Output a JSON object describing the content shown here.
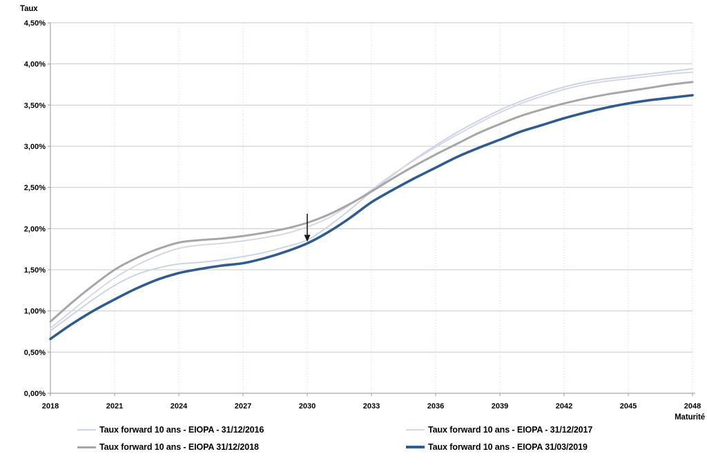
{
  "chart_data": {
    "type": "line",
    "title": "",
    "ylabel": "Taux",
    "xlabel": "Maturité",
    "x_start": 2018,
    "x_end": 2048,
    "x_ticks": [
      "2018",
      "2021",
      "2024",
      "2027",
      "2030",
      "2033",
      "2036",
      "2039",
      "2042",
      "2045",
      "2048"
    ],
    "ylim": [
      0,
      4.5
    ],
    "y_ticks": {
      "values": [
        0,
        0.5,
        1.0,
        1.5,
        2.0,
        2.5,
        3.0,
        3.5,
        4.0,
        4.5
      ],
      "labels": [
        "0,00%",
        "0,50%",
        "1,00%",
        "1,50%",
        "2,00%",
        "2,50%",
        "3,00%",
        "3,50%",
        "4,00%",
        "4,50%"
      ]
    },
    "grid": {
      "horizontal": "solid",
      "vertical": "dotted"
    },
    "legend_position": "bottom-two-columns",
    "x": [
      2018,
      2019,
      2020,
      2021,
      2022,
      2023,
      2024,
      2025,
      2026,
      2027,
      2028,
      2029,
      2030,
      2031,
      2032,
      2033,
      2034,
      2035,
      2036,
      2037,
      2038,
      2039,
      2040,
      2041,
      2042,
      2043,
      2044,
      2045,
      2046,
      2047,
      2048
    ],
    "series": [
      {
        "name": "Taux forward 10 ans - EIOPA - 31/12/2016",
        "color": "#c7d5e8",
        "width": 2,
        "values": [
          0.76,
          0.95,
          1.14,
          1.31,
          1.44,
          1.52,
          1.57,
          1.59,
          1.62,
          1.66,
          1.71,
          1.78,
          1.86,
          2.03,
          2.23,
          2.45,
          2.65,
          2.84,
          3.01,
          3.17,
          3.31,
          3.44,
          3.55,
          3.64,
          3.72,
          3.78,
          3.82,
          3.85,
          3.88,
          3.91,
          3.94
        ]
      },
      {
        "name": "Taux forward 10 ans - EIOPA - 31/12/2017",
        "color": "#dad4e8",
        "width": 2,
        "values": [
          0.79,
          1.0,
          1.21,
          1.4,
          1.55,
          1.67,
          1.76,
          1.8,
          1.82,
          1.85,
          1.89,
          1.94,
          2.02,
          2.13,
          2.29,
          2.47,
          2.66,
          2.83,
          2.99,
          3.14,
          3.28,
          3.41,
          3.52,
          3.61,
          3.69,
          3.75,
          3.79,
          3.82,
          3.85,
          3.88,
          3.9
        ]
      },
      {
        "name": "Taux forward 10 ans - EIOPA 31/12/2018",
        "color": "#a6a6a6",
        "width": 3,
        "values": [
          0.87,
          1.1,
          1.31,
          1.5,
          1.64,
          1.75,
          1.83,
          1.86,
          1.88,
          1.91,
          1.95,
          2.0,
          2.07,
          2.17,
          2.3,
          2.45,
          2.61,
          2.76,
          2.9,
          3.03,
          3.16,
          3.27,
          3.37,
          3.45,
          3.52,
          3.58,
          3.63,
          3.67,
          3.71,
          3.75,
          3.78
        ]
      },
      {
        "name": "Taux forward 10 ans - EIOPA 31/03/2019",
        "color": "#2f5b8f",
        "width": 3.6,
        "values": [
          0.66,
          0.84,
          1.0,
          1.14,
          1.27,
          1.38,
          1.46,
          1.51,
          1.55,
          1.58,
          1.64,
          1.72,
          1.82,
          1.96,
          2.13,
          2.32,
          2.47,
          2.61,
          2.74,
          2.87,
          2.98,
          3.08,
          3.18,
          3.26,
          3.34,
          3.41,
          3.47,
          3.52,
          3.56,
          3.59,
          3.62
        ]
      }
    ],
    "annotation": {
      "shape": "down-arrow",
      "x": 2030,
      "y_from": 2.18,
      "y_to": 1.84
    },
    "colors": {
      "axis": "#a6a6a6",
      "grid_horizontal": "#c9c9c9",
      "grid_vertical": "#dcdcdc",
      "tick_text": "#000000",
      "annotation": "#1a1a1a"
    }
  }
}
